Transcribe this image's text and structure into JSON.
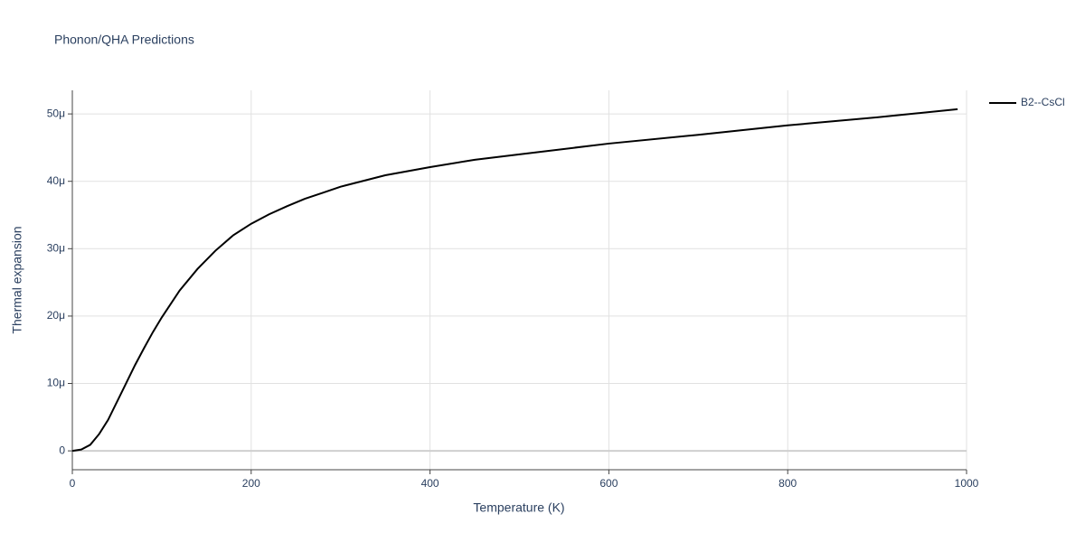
{
  "chart_data": {
    "type": "line",
    "title": "Phonon/QHA Predictions",
    "x_label": "Temperature (K)",
    "y_label": "Thermal expansion",
    "x": [
      0,
      10,
      20,
      30,
      40,
      50,
      60,
      70,
      80,
      90,
      100,
      120,
      140,
      160,
      180,
      200,
      220,
      240,
      260,
      280,
      300,
      350,
      400,
      450,
      500,
      600,
      700,
      800,
      900,
      990
    ],
    "series": [
      {
        "name": "B2--CsCl",
        "color": "#000000",
        "values": [
          0,
          2e-07,
          9e-07,
          2.5e-06,
          4.6e-06,
          7.3e-06,
          1e-05,
          1.27e-05,
          1.52e-05,
          1.76e-05,
          1.98e-05,
          2.38e-05,
          2.7e-05,
          2.97e-05,
          3.2e-05,
          3.37e-05,
          3.51e-05,
          3.63e-05,
          3.74e-05,
          3.83e-05,
          3.92e-05,
          4.09e-05,
          4.21e-05,
          4.32e-05,
          4.4e-05,
          4.56e-05,
          4.69e-05,
          4.83e-05,
          4.95e-05,
          5.07e-05
        ]
      }
    ],
    "xlim": [
      0,
      1000
    ],
    "xticks": [
      0,
      200,
      400,
      600,
      800,
      1000
    ],
    "ylim": [
      -2.8e-06,
      5.35e-05
    ],
    "yticks": [
      0,
      {
        "value": 1e-05,
        "label": "10μ"
      },
      {
        "value": 2e-05,
        "label": "20μ"
      },
      {
        "value": 3e-05,
        "label": "30μ"
      },
      {
        "value": 4e-05,
        "label": "40μ"
      },
      {
        "value": 5e-05,
        "label": "50μ"
      }
    ],
    "grid": true,
    "legend": "top-right"
  }
}
